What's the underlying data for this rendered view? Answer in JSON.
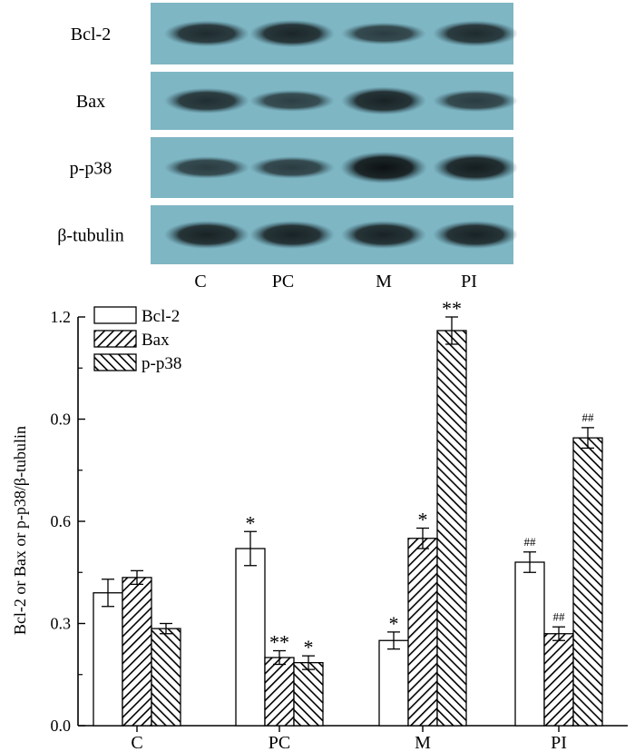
{
  "blot": {
    "rows": [
      {
        "label": "Bcl-2",
        "intensity": [
          0.85,
          0.95,
          0.55,
          0.85
        ]
      },
      {
        "label": "Bax",
        "intensity": [
          0.8,
          0.5,
          1.0,
          0.55
        ]
      },
      {
        "label": "p-p38",
        "intensity": [
          0.55,
          0.55,
          1.3,
          1.1
        ]
      },
      {
        "label": "β-tubulin",
        "intensity": [
          1.0,
          1.0,
          1.0,
          1.0
        ]
      }
    ],
    "lanes": [
      "C",
      "PC",
      "M",
      "PI"
    ],
    "colors": {
      "membrane": "#7fb6c4",
      "band": "#1f2a2c"
    }
  },
  "chart_data": {
    "type": "bar",
    "categories": [
      "C",
      "PC",
      "M",
      "PI"
    ],
    "ylabel": "Bcl-2 or Bax or p-p38/β-tubulin",
    "ylim": [
      0,
      1.2
    ],
    "yticks": [
      "0.0",
      "0.3",
      "0.6",
      "0.9",
      "1.2"
    ],
    "legend_position": "top-left",
    "series": [
      {
        "name": "Bcl-2",
        "pattern": "open",
        "values": [
          0.39,
          0.52,
          0.25,
          0.48
        ],
        "errors": [
          0.04,
          0.05,
          0.025,
          0.03
        ],
        "annotations": [
          "",
          "*",
          "*",
          "##"
        ]
      },
      {
        "name": "Bax",
        "pattern": "hatch-forward",
        "values": [
          0.435,
          0.2,
          0.55,
          0.27
        ],
        "errors": [
          0.02,
          0.02,
          0.03,
          0.02
        ],
        "annotations": [
          "",
          "**",
          "*",
          "##"
        ]
      },
      {
        "name": "p-p38",
        "pattern": "hatch-back",
        "values": [
          0.285,
          0.185,
          1.16,
          0.845
        ],
        "errors": [
          0.015,
          0.02,
          0.04,
          0.03
        ],
        "annotations": [
          "",
          "*",
          "**",
          "##"
        ]
      }
    ]
  }
}
